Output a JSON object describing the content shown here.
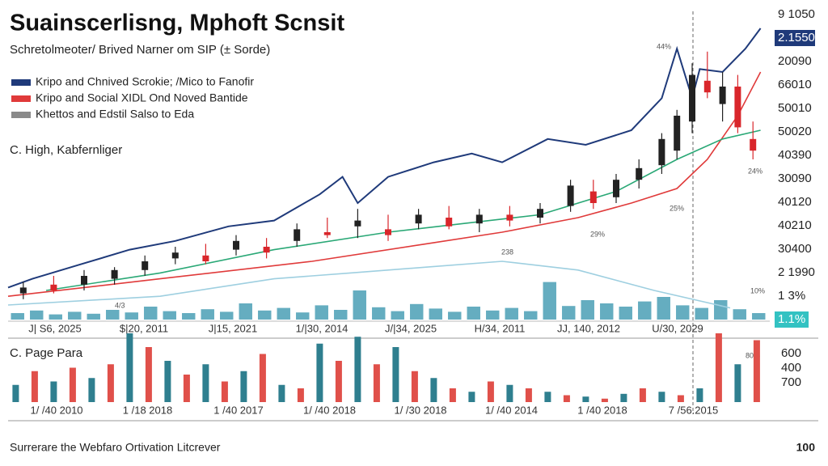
{
  "chart_data": [
    {
      "type": "candlestick",
      "title": "Suainscerlisng, Mphoft Scnsit",
      "subtitle": "Schretolmeoter/ Brived Narner om SIP (± Sorde)",
      "note": "C. High, Kabfernliger",
      "xlim": [
        0,
        100
      ],
      "ylim": [
        0,
        100
      ],
      "series": [
        {
          "name": "Kripo and Chnived Scrokie; /Mico to Fanofir",
          "color": "#1f3a7a",
          "x": [
            0,
            3.2,
            9.6,
            16,
            22,
            29,
            35,
            41,
            44,
            46,
            50,
            56,
            61,
            65,
            71,
            76,
            82,
            86,
            88,
            90,
            91,
            94,
            97,
            99
          ],
          "y": [
            11,
            14,
            19,
            24,
            27,
            32,
            34,
            43,
            49,
            40,
            49,
            54,
            57,
            54,
            62,
            60,
            65,
            76,
            93,
            76,
            86,
            85,
            93,
            100
          ]
        },
        {
          "name": "Kripo and Social XIDL Ond Noved Bantide",
          "color": "#e03a3a",
          "x": [
            0,
            20,
            40,
            55,
            65,
            75,
            82,
            88,
            92,
            96,
            99
          ],
          "y": [
            8,
            14,
            20,
            26,
            30,
            35,
            40,
            45,
            55,
            70,
            85
          ]
        },
        {
          "name": "Khettos and Edstil Salso to Eda",
          "color": "#9ecfe0",
          "x": [
            0,
            20,
            35,
            45,
            55,
            65,
            75,
            85,
            95
          ],
          "y": [
            5,
            8,
            14,
            16,
            18,
            20,
            17,
            10,
            4
          ]
        },
        {
          "color": "#2aa876",
          "x": [
            5,
            20,
            35,
            50,
            60,
            70,
            80,
            88,
            94,
            99
          ],
          "y": [
            10,
            16,
            24,
            30,
            33,
            36,
            44,
            55,
            62,
            65
          ]
        }
      ],
      "candles": {
        "up_color": "#222222",
        "down_color": "#d9262b",
        "x": [
          2,
          6,
          10,
          14,
          18,
          22,
          26,
          30,
          34,
          38,
          42,
          46,
          50,
          54,
          58,
          62,
          66,
          70,
          74,
          77,
          80,
          83,
          86,
          88,
          90,
          92,
          94,
          96,
          98
        ],
        "open": [
          9,
          12,
          12,
          14,
          17,
          21,
          22,
          24,
          25,
          27,
          30,
          32,
          31,
          33,
          35,
          33,
          36,
          35,
          39,
          44,
          42,
          48,
          53,
          58,
          68,
          82,
          74,
          80,
          62
        ],
        "high": [
          13,
          15,
          17,
          18,
          22,
          25,
          26,
          29,
          28,
          33,
          35,
          38,
          36,
          38,
          39,
          38,
          39,
          40,
          48,
          48,
          50,
          55,
          64,
          72,
          88,
          92,
          85,
          84,
          68
        ],
        "low": [
          7,
          9,
          10,
          12,
          15,
          19,
          19,
          22,
          21,
          25,
          28,
          28,
          27,
          31,
          31,
          30,
          32,
          33,
          37,
          38,
          40,
          45,
          50,
          55,
          64,
          76,
          68,
          64,
          55
        ],
        "close": [
          11,
          10,
          15,
          17,
          20,
          23,
          20,
          27,
          23,
          31,
          29,
          34,
          29,
          36,
          32,
          36,
          34,
          38,
          46,
          40,
          48,
          52,
          62,
          70,
          84,
          78,
          80,
          66,
          58
        ]
      },
      "volume": {
        "color": "#4a9fb5",
        "ylim": [
          0,
          100
        ],
        "values": [
          10,
          14,
          8,
          12,
          9,
          15,
          11,
          20,
          13,
          10,
          16,
          12,
          25,
          14,
          18,
          11,
          22,
          15,
          45,
          19,
          13,
          24,
          17,
          12,
          20,
          14,
          18,
          13,
          58,
          21,
          30,
          25,
          20,
          28,
          35,
          22,
          18,
          30,
          16,
          10
        ]
      },
      "x_labels": [
        "J| S6, 2025",
        "$|20, 2011",
        "J|15, 2021",
        "1/|30, 2014",
        "J/|34, 2025",
        "H/34, 2011",
        "JJ, 140, 2012",
        "U/30, 2029"
      ],
      "right_labels": [
        "9 1050",
        "2.1550",
        "20090",
        "66010",
        "50010",
        "50020",
        "40390",
        "30090",
        "40120",
        "40210",
        "30400",
        "2 1990",
        "1 3%",
        "1.1%"
      ],
      "annotations": [
        "44%",
        "24%",
        "25%",
        "29%",
        "238",
        "10%",
        "4/3"
      ]
    },
    {
      "type": "bar",
      "title": "C. Page Para",
      "xlim": [
        0,
        100
      ],
      "ylim": [
        0,
        100
      ],
      "series": [
        {
          "color": "#2f7f8f",
          "x": [
            1,
            6,
            11,
            16,
            21,
            26,
            31,
            36,
            41,
            46,
            51,
            56,
            61,
            66,
            71,
            76,
            81,
            86,
            91,
            96
          ],
          "values": [
            25,
            30,
            35,
            100,
            60,
            55,
            45,
            25,
            85,
            95,
            80,
            35,
            15,
            25,
            15,
            8,
            12,
            15,
            20,
            55
          ]
        },
        {
          "color": "#e0504a",
          "x": [
            3.5,
            8.5,
            13.5,
            18.5,
            23.5,
            28.5,
            33.5,
            38.5,
            43.5,
            48.5,
            53.5,
            58.5,
            63.5,
            68.5,
            73.5,
            78.5,
            83.5,
            88.5,
            93.5,
            98.5
          ],
          "values": [
            45,
            50,
            55,
            80,
            40,
            30,
            70,
            20,
            60,
            55,
            45,
            20,
            30,
            20,
            10,
            5,
            20,
            10,
            100,
            90
          ]
        }
      ],
      "x_labels": [
        "1/ /40 2010",
        "1 /18 2018",
        "1 /40 2017",
        "1/ /40 2018",
        "1/ /30 2018",
        "1/ /40 2014",
        "1 /40 2018",
        "7 /56.2015"
      ],
      "right_labels": [
        "600",
        "400",
        "700"
      ],
      "annotation": "80%"
    }
  ],
  "footer": {
    "text": "Surrerare the Webfaro Ortivation Litcrever",
    "page": "100"
  }
}
